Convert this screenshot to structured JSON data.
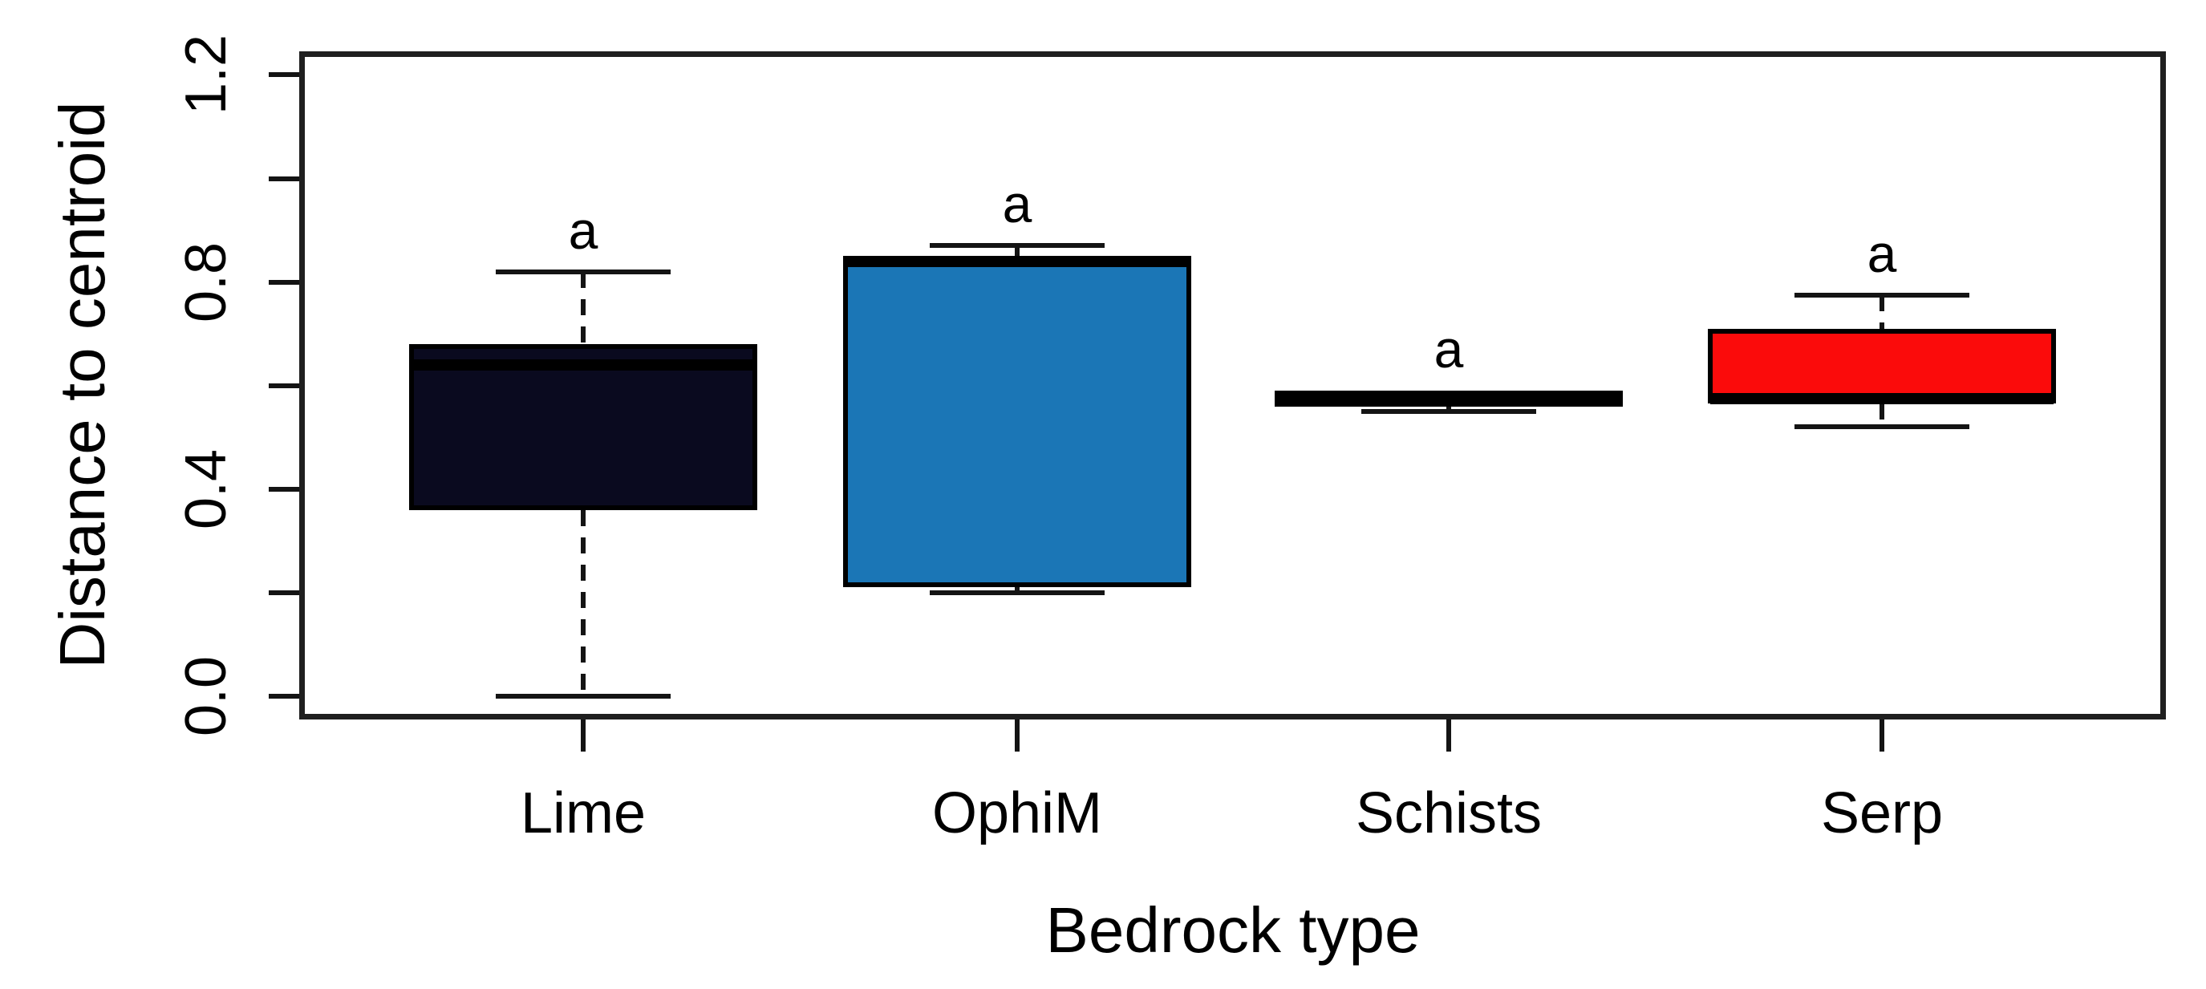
{
  "page": {
    "background": "#ffffff"
  },
  "chart_data": {
    "type": "boxplot",
    "title": "",
    "xlabel": "Bedrock type",
    "ylabel": "Distance to centroid",
    "categories": [
      "Lime",
      "OphiM",
      "Schists",
      "Serp"
    ],
    "significance_labels": [
      "a",
      "a",
      "a",
      "a"
    ],
    "ylim": [
      0,
      1.2
    ],
    "grid": false,
    "legend": null,
    "axis_color": "#141414",
    "box_border_color": "#000000",
    "y_ticks": [
      {
        "v": 0.0,
        "label": "0.0"
      },
      {
        "v": 0.2,
        "label": ""
      },
      {
        "v": 0.4,
        "label": "0.4"
      },
      {
        "v": 0.6,
        "label": ""
      },
      {
        "v": 0.8,
        "label": "0.8"
      },
      {
        "v": 1.0,
        "label": ""
      },
      {
        "v": 1.2,
        "label": "1.2"
      }
    ],
    "series": [
      {
        "name": "Lime",
        "fill": "#0a0a1f",
        "whisker_low": 0.0,
        "q1": 0.36,
        "median": 0.64,
        "q3": 0.68,
        "whisker_high": 0.82
      },
      {
        "name": "OphiM",
        "fill": "#1b76b6",
        "whisker_low": 0.2,
        "q1": 0.21,
        "median": 0.84,
        "q3": 0.85,
        "whisker_high": 0.87
      },
      {
        "name": "Schists",
        "fill": "#000000",
        "whisker_low": 0.55,
        "q1": 0.56,
        "median": 0.575,
        "q3": 0.59,
        "whisker_high": 0.59
      },
      {
        "name": "Serp",
        "fill": "#fb0b0b",
        "whisker_low": 0.52,
        "q1": 0.565,
        "median": 0.575,
        "q3": 0.71,
        "whisker_high": 0.775
      }
    ]
  }
}
